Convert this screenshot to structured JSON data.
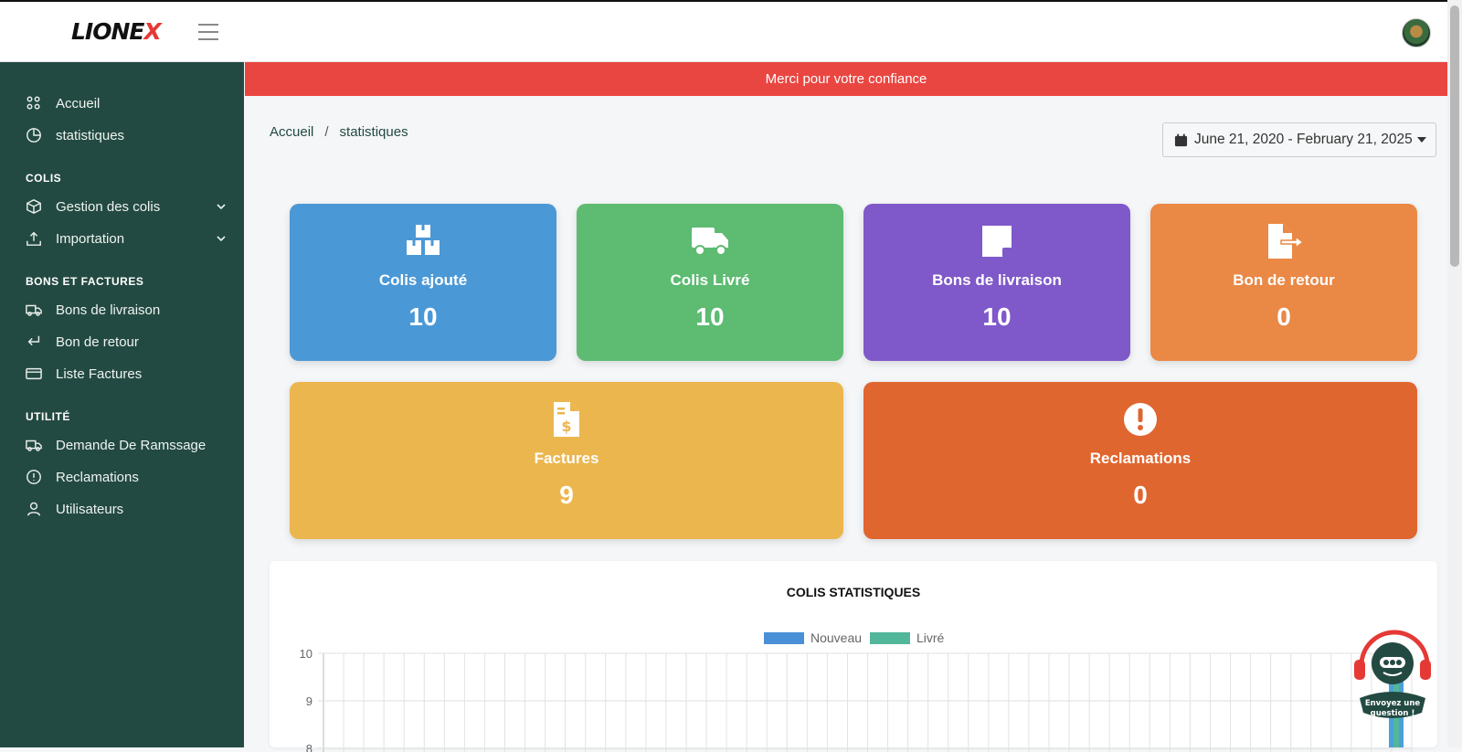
{
  "app": {
    "logo_left": "LIONE",
    "logo_right": "X"
  },
  "sidebar": {
    "items_top": [
      {
        "label": "Accueil",
        "icon": "dashboard-icon"
      },
      {
        "label": "statistiques",
        "icon": "pie-chart-icon"
      }
    ],
    "sections": [
      {
        "title": "COLIS",
        "items": [
          {
            "label": "Gestion des colis",
            "icon": "box-icon"
          },
          {
            "label": "Importation",
            "icon": "upload-icon"
          }
        ]
      },
      {
        "title": "BONS ET FACTURES",
        "items": [
          {
            "label": "Bons de livraison",
            "icon": "truck-icon"
          },
          {
            "label": "Bon de retour",
            "icon": "return-icon"
          },
          {
            "label": "Liste Factures",
            "icon": "card-icon"
          }
        ]
      },
      {
        "title": "UTILITÉ",
        "items": [
          {
            "label": "Demande De Ramssage",
            "icon": "truck-icon"
          },
          {
            "label": "Reclamations",
            "icon": "alert-circle-icon"
          },
          {
            "label": "Utilisateurs",
            "icon": "user-icon"
          }
        ]
      }
    ]
  },
  "banner": {
    "text": "Merci pour votre confiance"
  },
  "breadcrumb": {
    "home": "Accueil",
    "separator": "/",
    "current": "statistiques"
  },
  "daterange": {
    "value": "June 21, 2020 - February 21, 2025"
  },
  "cards": [
    {
      "title": "Colis ajouté",
      "value": "10",
      "color": "#4b98d6",
      "icon": "boxes-icon"
    },
    {
      "title": "Colis Livré",
      "value": "10",
      "color": "#5dbb72",
      "icon": "truck-icon"
    },
    {
      "title": "Bons de livraison",
      "value": "10",
      "color": "#7f58c9",
      "icon": "note-icon"
    },
    {
      "title": "Bon de retour",
      "value": "0",
      "color": "#ea8845",
      "icon": "file-export-icon"
    },
    {
      "title": "Factures",
      "value": "9",
      "color": "#ecb64e",
      "icon": "invoice-icon"
    },
    {
      "title": "Reclamations",
      "value": "0",
      "color": "#e0662f",
      "icon": "exclamation-icon"
    }
  ],
  "chart_data": {
    "type": "bar",
    "title": "COLIS STATISTIQUES",
    "series": [
      {
        "name": "Nouveau",
        "color": "#4a90d6",
        "values": []
      },
      {
        "name": "Livré",
        "color": "#52b79a",
        "values": []
      }
    ],
    "y_ticks": [
      "10",
      "9",
      "8"
    ],
    "legend_position": "top",
    "grid": true
  },
  "help_widget": {
    "line1": "Envoyez une",
    "line2": "question !"
  }
}
